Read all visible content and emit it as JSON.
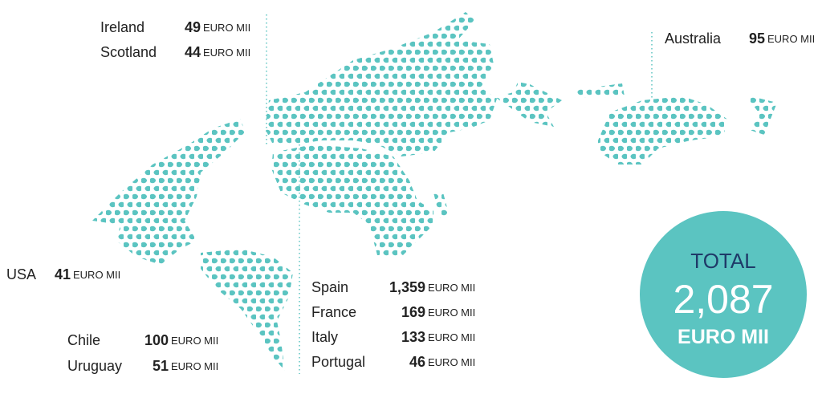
{
  "unit": "EURO MII",
  "callouts": [
    {
      "entries": [
        {
          "label": "Ireland",
          "value": 49
        },
        {
          "label": "Scotland",
          "value": 44
        }
      ]
    },
    {
      "entries": [
        {
          "label": "Australia",
          "value": 95
        }
      ]
    },
    {
      "entries": [
        {
          "label": "USA",
          "value": 41
        }
      ]
    },
    {
      "entries": [
        {
          "label": "Chile",
          "value": 100
        },
        {
          "label": "Uruguay",
          "value": 51
        }
      ]
    },
    {
      "entries": [
        {
          "label": "Spain",
          "value": {
            "value": 1359,
            "label": "1,359"
          }
        },
        {
          "label": "France",
          "value": 169
        },
        {
          "label": "Italy",
          "value": 133
        },
        {
          "label": "Portugal",
          "value": 46
        }
      ]
    }
  ],
  "total": {
    "title": "TOTAL",
    "value": {
      "value": 2087,
      "label": "2,087"
    },
    "unit": "EURO MII"
  }
}
